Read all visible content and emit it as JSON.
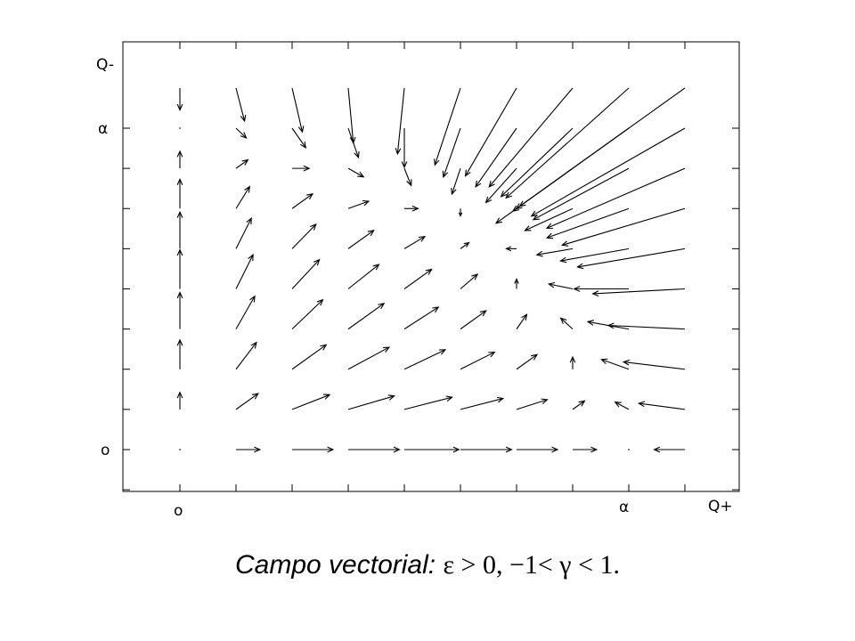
{
  "chart_data": {
    "type": "vector_field",
    "xlabel": "Q+",
    "ylabel": "Q-",
    "x_ticks": [
      "o",
      "α"
    ],
    "y_ticks": [
      "o",
      "α"
    ],
    "xlim": [
      0,
      1
    ],
    "ylim": [
      0,
      1
    ],
    "params": {
      "alpha": 0.81,
      "gamma": 0.5
    },
    "field": "dQ+/dt = Q+ (alpha - Q+ - gamma*Q-),  dQ-/dt = Q- (alpha - Q- - gamma*Q+)",
    "grid": true
  },
  "caption": {
    "label": "Campo vectorial",
    "condition": "ε > 0, −1< γ < 1."
  }
}
